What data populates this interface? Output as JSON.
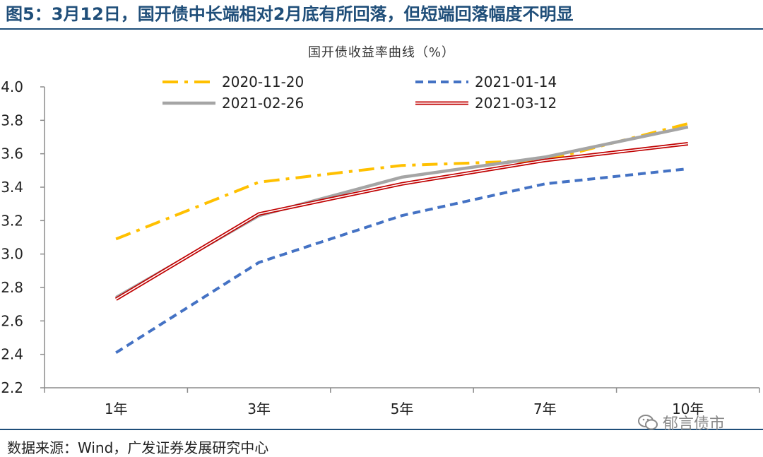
{
  "header": {
    "figure_title": "图5：3月12日，国开债中长端相对2月底有所回落，但短端回落幅度不明显"
  },
  "footer": {
    "source": "数据来源：Wind，广发证券发展研究中心",
    "watermark": "郁言债市",
    "watermark_icon": "wechat-icon"
  },
  "chart_data": {
    "type": "line",
    "title": "国开债收益率曲线（%）",
    "categories": [
      "1年",
      "3年",
      "5年",
      "7年",
      "10年"
    ],
    "ylim": [
      2.2,
      4.0
    ],
    "yticks": [
      "4.0",
      "3.8",
      "3.6",
      "3.4",
      "3.2",
      "3.0",
      "2.8",
      "2.6",
      "2.4",
      "2.2"
    ],
    "grid": false,
    "legend_position": "top",
    "series": [
      {
        "name": "2020-11-20",
        "values": [
          3.09,
          3.43,
          3.53,
          3.56,
          3.78
        ],
        "color": "#FFC000",
        "style": "dash-dot"
      },
      {
        "name": "2021-01-14",
        "values": [
          2.41,
          2.95,
          3.23,
          3.42,
          3.51
        ],
        "color": "#4472C4",
        "style": "dashed"
      },
      {
        "name": "2021-02-26",
        "values": [
          2.74,
          3.23,
          3.46,
          3.58,
          3.76
        ],
        "color": "#A5A5A5",
        "style": "solid-thick"
      },
      {
        "name": "2021-03-12",
        "values": [
          2.73,
          3.24,
          3.42,
          3.56,
          3.66
        ],
        "color": "#C00000",
        "style": "double"
      }
    ]
  }
}
